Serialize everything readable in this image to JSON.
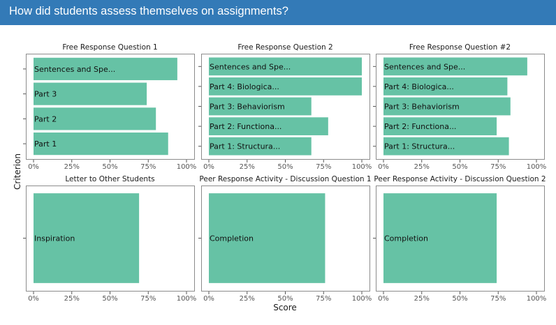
{
  "header": {
    "title": "How did students assess themselves on assignments?"
  },
  "chart_data": {
    "type": "bar",
    "orientation": "horizontal",
    "xlabel": "Score",
    "ylabel": "Criterion",
    "xlim": [
      0,
      1
    ],
    "x_ticks": [
      "0%",
      "25%",
      "50%",
      "75%",
      "100%"
    ],
    "grid": false,
    "bar_color": "#66c2a5",
    "panels": [
      {
        "title": "Free Response Question 1",
        "categories": [
          "Sentences and Spe...",
          "Part 3",
          "Part 2",
          "Part 1"
        ],
        "values": [
          0.94,
          0.74,
          0.8,
          0.88
        ]
      },
      {
        "title": "Free Response Question 2",
        "categories": [
          "Sentences and Spe...",
          "Part 4: Biologica...",
          "Part 3: Behaviorism",
          "Part 2: Functiona...",
          "Part 1: Structura..."
        ],
        "values": [
          1.0,
          1.0,
          0.67,
          0.78,
          0.67
        ]
      },
      {
        "title": "Free Response Question #2",
        "categories": [
          "Sentences and Spe...",
          "Part 4: Biologica...",
          "Part 3: Behaviorism",
          "Part 2: Functiona...",
          "Part 1: Structura..."
        ],
        "values": [
          0.94,
          0.81,
          0.83,
          0.74,
          0.82
        ]
      },
      {
        "title": "Letter to Other Students",
        "categories": [
          "Inspiration"
        ],
        "values": [
          0.69
        ]
      },
      {
        "title": "Peer Response Activity - Discussion Question 1",
        "categories": [
          "Completion"
        ],
        "values": [
          0.76
        ]
      },
      {
        "title": "Peer Response Activity - Discussion Question 2",
        "categories": [
          "Completion"
        ],
        "values": [
          0.74
        ]
      }
    ]
  }
}
